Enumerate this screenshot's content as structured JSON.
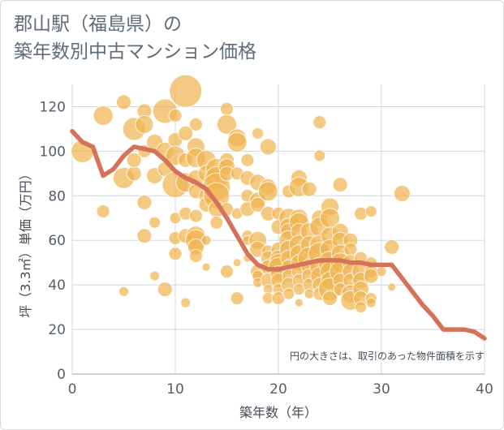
{
  "title_line1": "郡山駅（福島県）の",
  "title_line2": "築年数別中古マンション価格",
  "chart_data": {
    "type": "scatter",
    "xlabel": "築年数（年）",
    "ylabel": "坪（3.3㎡）単価（万円）",
    "xlim": [
      0,
      40
    ],
    "ylim": [
      0,
      130
    ],
    "xticks": [
      "0",
      "10",
      "20",
      "30",
      "40"
    ],
    "yticks": [
      "0",
      "20",
      "40",
      "60",
      "80",
      "100",
      "120"
    ],
    "note": "円の大きさは、取引のあった物件面積を示す",
    "colors": {
      "bubble": "#f0b450",
      "line": "#d4725a",
      "grid": "#cfd8e3"
    },
    "trend": {
      "x": [
        0,
        1,
        2,
        3,
        4,
        5,
        6,
        7,
        8,
        9,
        10,
        11,
        12,
        13,
        14,
        15,
        16,
        17,
        18,
        19,
        20,
        21,
        22,
        23,
        24,
        25,
        26,
        27,
        28,
        29,
        30,
        31,
        32,
        33,
        34,
        35,
        36,
        37,
        38,
        39,
        40
      ],
      "y": [
        109,
        104,
        102,
        89,
        92,
        98,
        102,
        101,
        100,
        96,
        91,
        88,
        86,
        83,
        77,
        70,
        62,
        54,
        49,
        47,
        47,
        48,
        49,
        50,
        51,
        51,
        51,
        50,
        50,
        49,
        49,
        49,
        43,
        37,
        31,
        26,
        20,
        20,
        20,
        19,
        16
      ]
    },
    "points": [
      [
        1,
        100,
        14
      ],
      [
        3,
        116,
        12
      ],
      [
        3,
        73,
        8
      ],
      [
        5,
        122,
        9
      ],
      [
        5,
        88,
        13
      ],
      [
        5,
        37,
        6
      ],
      [
        6,
        110,
        14
      ],
      [
        6,
        90,
        9
      ],
      [
        6,
        96,
        9
      ],
      [
        7,
        118,
        9
      ],
      [
        7,
        112,
        11
      ],
      [
        7,
        100,
        8
      ],
      [
        7,
        77,
        9
      ],
      [
        7,
        62,
        9
      ],
      [
        8,
        104,
        10
      ],
      [
        8,
        89,
        10
      ],
      [
        8,
        68,
        7
      ],
      [
        8,
        44,
        6
      ],
      [
        9,
        118,
        15
      ],
      [
        9,
        100,
        11
      ],
      [
        9,
        92,
        9
      ],
      [
        9,
        38,
        9
      ],
      [
        10,
        116,
        8
      ],
      [
        10,
        105,
        9
      ],
      [
        10,
        98,
        12
      ],
      [
        10,
        85,
        16
      ],
      [
        10,
        70,
        7
      ],
      [
        10,
        61,
        8
      ],
      [
        10,
        54,
        8
      ],
      [
        11,
        127,
        20
      ],
      [
        11,
        108,
        9
      ],
      [
        11,
        96,
        9
      ],
      [
        11,
        86,
        12
      ],
      [
        11,
        72,
        8
      ],
      [
        11,
        62,
        9
      ],
      [
        11,
        32,
        6
      ],
      [
        12,
        112,
        8
      ],
      [
        12,
        102,
        11
      ],
      [
        12,
        97,
        12
      ],
      [
        12,
        88,
        10
      ],
      [
        12,
        82,
        9
      ],
      [
        12,
        71,
        8
      ],
      [
        12,
        62,
        12
      ],
      [
        12,
        60,
        13
      ],
      [
        12,
        57,
        10
      ],
      [
        12,
        53,
        8
      ],
      [
        13,
        96,
        12
      ],
      [
        13,
        90,
        10
      ],
      [
        13,
        80,
        9
      ],
      [
        13,
        76,
        9
      ],
      [
        13,
        48,
        5
      ],
      [
        13,
        60,
        6
      ],
      [
        14,
        92,
        13
      ],
      [
        14,
        88,
        14
      ],
      [
        14,
        84,
        17
      ],
      [
        14,
        80,
        16
      ],
      [
        14,
        74,
        10
      ],
      [
        14,
        68,
        8
      ],
      [
        15,
        119,
        8
      ],
      [
        15,
        112,
        12
      ],
      [
        15,
        96,
        9
      ],
      [
        15,
        93,
        10
      ],
      [
        15,
        90,
        9
      ],
      [
        15,
        74,
        8
      ],
      [
        15,
        46,
        8
      ],
      [
        16,
        106,
        11
      ],
      [
        16,
        104,
        12
      ],
      [
        16,
        90,
        8
      ],
      [
        16,
        72,
        7
      ],
      [
        16,
        50,
        5
      ],
      [
        16,
        34,
        8
      ],
      [
        17,
        96,
        8
      ],
      [
        17,
        88,
        9
      ],
      [
        17,
        80,
        8
      ],
      [
        17,
        74,
        9
      ],
      [
        17,
        62,
        7
      ],
      [
        17,
        60,
        6
      ],
      [
        17,
        52,
        5
      ],
      [
        18,
        108,
        7
      ],
      [
        18,
        86,
        10
      ],
      [
        18,
        78,
        10
      ],
      [
        18,
        76,
        9
      ],
      [
        18,
        60,
        11
      ],
      [
        18,
        56,
        10
      ],
      [
        18,
        46,
        9
      ],
      [
        18,
        44,
        7
      ],
      [
        18,
        41,
        6
      ],
      [
        19,
        102,
        10
      ],
      [
        19,
        84,
        10
      ],
      [
        19,
        82,
        12
      ],
      [
        19,
        72,
        9
      ],
      [
        19,
        55,
        8
      ],
      [
        19,
        52,
        9
      ],
      [
        19,
        48,
        9
      ],
      [
        19,
        42,
        9
      ],
      [
        19,
        38,
        6
      ],
      [
        19,
        34,
        7
      ],
      [
        20,
        72,
        8
      ],
      [
        20,
        66,
        9
      ],
      [
        20,
        56,
        9
      ],
      [
        20,
        52,
        10
      ],
      [
        20,
        50,
        11
      ],
      [
        20,
        48,
        12
      ],
      [
        20,
        45,
        10
      ],
      [
        20,
        42,
        9
      ],
      [
        20,
        38,
        7
      ],
      [
        20,
        34,
        8
      ],
      [
        21,
        82,
        8
      ],
      [
        21,
        70,
        12
      ],
      [
        21,
        66,
        11
      ],
      [
        21,
        64,
        10
      ],
      [
        21,
        60,
        12
      ],
      [
        21,
        56,
        11
      ],
      [
        21,
        52,
        10
      ],
      [
        21,
        48,
        9
      ],
      [
        21,
        44,
        8
      ],
      [
        21,
        40,
        9
      ],
      [
        21,
        36,
        7
      ],
      [
        22,
        88,
        10
      ],
      [
        22,
        84,
        12
      ],
      [
        22,
        70,
        11
      ],
      [
        22,
        68,
        12
      ],
      [
        22,
        64,
        10
      ],
      [
        22,
        58,
        12
      ],
      [
        22,
        54,
        11
      ],
      [
        22,
        50,
        10
      ],
      [
        22,
        46,
        9
      ],
      [
        22,
        42,
        8
      ],
      [
        22,
        38,
        7
      ],
      [
        22,
        32,
        5
      ],
      [
        23,
        83,
        9
      ],
      [
        23,
        64,
        11
      ],
      [
        23,
        58,
        11
      ],
      [
        23,
        52,
        14
      ],
      [
        23,
        48,
        10
      ],
      [
        23,
        44,
        9
      ],
      [
        23,
        40,
        8
      ],
      [
        23,
        36,
        6
      ],
      [
        24,
        113,
        8
      ],
      [
        24,
        98,
        7
      ],
      [
        24,
        70,
        10
      ],
      [
        24,
        66,
        12
      ],
      [
        24,
        58,
        12
      ],
      [
        24,
        54,
        14
      ],
      [
        24,
        48,
        12
      ],
      [
        24,
        44,
        11
      ],
      [
        24,
        40,
        9
      ],
      [
        24,
        36,
        8
      ],
      [
        25,
        75,
        11
      ],
      [
        25,
        70,
        12
      ],
      [
        25,
        62,
        11
      ],
      [
        25,
        56,
        12
      ],
      [
        25,
        50,
        14
      ],
      [
        25,
        46,
        12
      ],
      [
        25,
        42,
        11
      ],
      [
        25,
        38,
        14
      ],
      [
        25,
        34,
        9
      ],
      [
        26,
        85,
        9
      ],
      [
        26,
        64,
        10
      ],
      [
        26,
        60,
        10
      ],
      [
        26,
        54,
        11
      ],
      [
        26,
        50,
        12
      ],
      [
        26,
        46,
        13
      ],
      [
        26,
        42,
        9
      ],
      [
        26,
        38,
        8
      ],
      [
        27,
        60,
        9
      ],
      [
        27,
        56,
        8
      ],
      [
        27,
        50,
        10
      ],
      [
        27,
        46,
        10
      ],
      [
        27,
        42,
        9
      ],
      [
        27,
        36,
        11
      ],
      [
        27,
        33,
        12
      ],
      [
        28,
        72,
        8
      ],
      [
        28,
        52,
        8
      ],
      [
        28,
        46,
        11
      ],
      [
        28,
        42,
        10
      ],
      [
        28,
        38,
        10
      ],
      [
        28,
        34,
        9
      ],
      [
        28,
        30,
        7
      ],
      [
        29,
        73,
        7
      ],
      [
        29,
        50,
        7
      ],
      [
        29,
        46,
        8
      ],
      [
        29,
        44,
        9
      ],
      [
        29,
        34,
        7
      ],
      [
        29,
        32,
        6
      ],
      [
        30,
        46,
        6
      ],
      [
        31,
        57,
        9
      ],
      [
        31,
        39,
        5
      ],
      [
        32,
        81,
        10
      ]
    ]
  }
}
